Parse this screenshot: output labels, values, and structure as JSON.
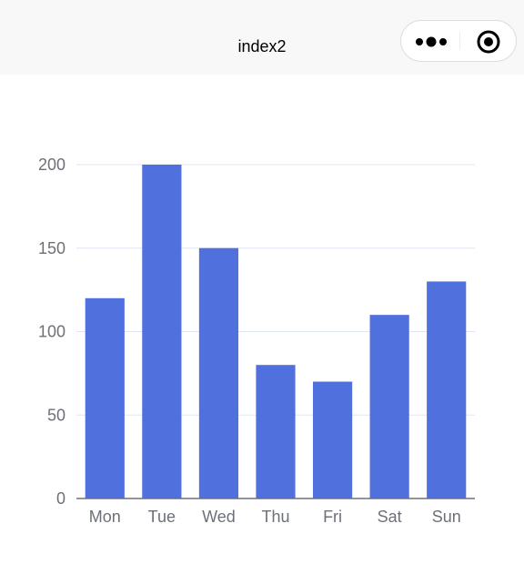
{
  "nav": {
    "title": "index2"
  },
  "capsule": {
    "more_icon": "more-dots-icon",
    "close_icon": "target-circle-icon"
  },
  "colors": {
    "bar": "#5070dd",
    "grid": "#e0e6f1",
    "axis_line": "#6e7079",
    "label": "#6e7079"
  },
  "chart_data": {
    "type": "bar",
    "categories": [
      "Mon",
      "Tue",
      "Wed",
      "Thu",
      "Fri",
      "Sat",
      "Sun"
    ],
    "values": [
      120,
      200,
      150,
      80,
      70,
      110,
      130
    ],
    "yticks": [
      0,
      50,
      100,
      150,
      200
    ],
    "ylim": [
      0,
      200
    ],
    "title": "",
    "xlabel": "",
    "ylabel": "",
    "grid": true,
    "legend": "none"
  }
}
